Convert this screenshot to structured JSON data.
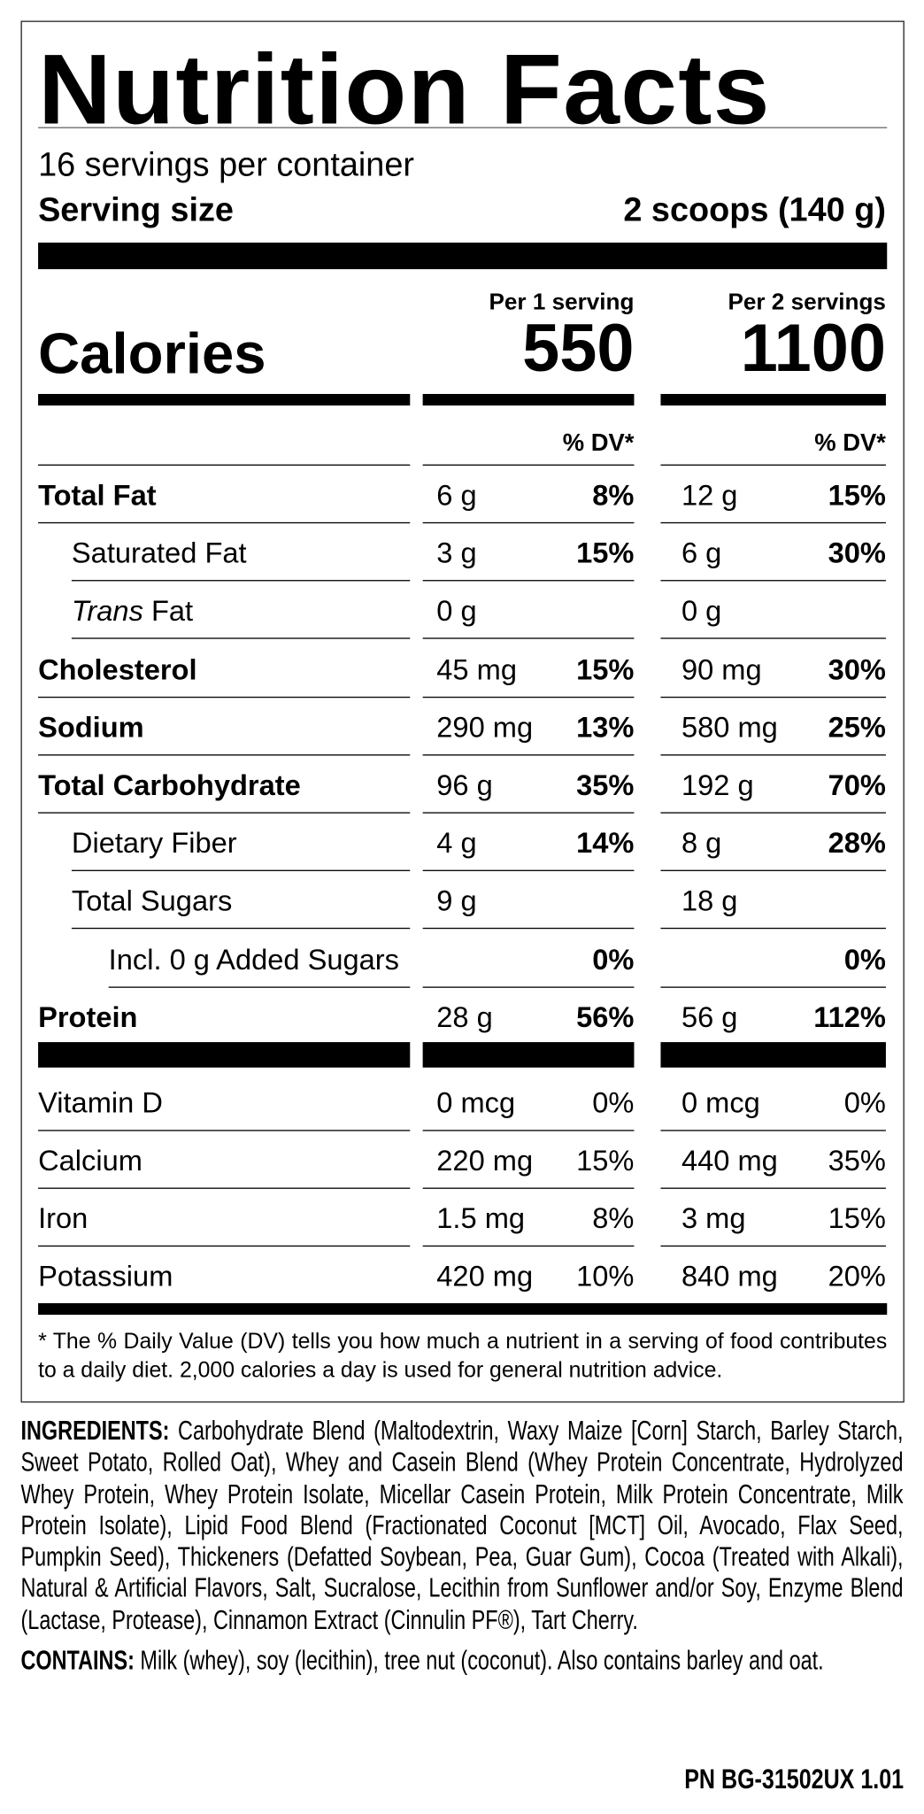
{
  "title": "Nutrition Facts",
  "servings_per_container": "16 servings per container",
  "serving_size_label": "Serving size",
  "serving_size_value": "2 scoops (140 g)",
  "columns": [
    {
      "header": "Per 1 serving",
      "calories": "550"
    },
    {
      "header": "Per 2 servings",
      "calories": "1100"
    }
  ],
  "calories_label": "Calories",
  "dv_header": "% DV*",
  "nutrients": [
    {
      "label": "Total Fat",
      "bold": true,
      "indent": 0,
      "v1": "6 g",
      "p1": "8%",
      "v2": "12 g",
      "p2": "15%"
    },
    {
      "label": "Saturated Fat",
      "bold": false,
      "indent": 1,
      "v1": "3 g",
      "p1": "15%",
      "v2": "6 g",
      "p2": "30%"
    },
    {
      "label_italic": "Trans",
      "label": " Fat",
      "bold": false,
      "indent": 1,
      "v1": "0 g",
      "p1": "",
      "v2": "0 g",
      "p2": ""
    },
    {
      "label": "Cholesterol",
      "bold": true,
      "indent": 0,
      "v1": "45 mg",
      "p1": "15%",
      "v2": "90 mg",
      "p2": "30%"
    },
    {
      "label": "Sodium",
      "bold": true,
      "indent": 0,
      "v1": "290 mg",
      "p1": "13%",
      "v2": "580 mg",
      "p2": "25%"
    },
    {
      "label": "Total Carbohydrate",
      "bold": true,
      "indent": 0,
      "v1": "96 g",
      "p1": "35%",
      "v2": "192 g",
      "p2": "70%"
    },
    {
      "label": "Dietary Fiber",
      "bold": false,
      "indent": 1,
      "v1": "4 g",
      "p1": "14%",
      "v2": "8 g",
      "p2": "28%"
    },
    {
      "label": "Total Sugars",
      "bold": false,
      "indent": 1,
      "v1": "9 g",
      "p1": "",
      "v2": "18 g",
      "p2": ""
    },
    {
      "label": "Incl. 0 g Added Sugars",
      "bold": false,
      "indent": 2,
      "v1": "",
      "p1": "0%",
      "v2": "",
      "p2": "0%"
    },
    {
      "label": "Protein",
      "bold": true,
      "indent": 0,
      "v1": "28 g",
      "p1": "56%",
      "v2": "56 g",
      "p2": "112%"
    }
  ],
  "vitamins": [
    {
      "label": "Vitamin D",
      "v1": "0 mcg",
      "p1": "0%",
      "v2": "0 mcg",
      "p2": "0%"
    },
    {
      "label": "Calcium",
      "v1": "220 mg",
      "p1": "15%",
      "v2": "440 mg",
      "p2": "35%"
    },
    {
      "label": "Iron",
      "v1": "1.5 mg",
      "p1": "8%",
      "v2": "3 mg",
      "p2": "15%"
    },
    {
      "label": "Potassium",
      "v1": "420 mg",
      "p1": "10%",
      "v2": "840 mg",
      "p2": "20%"
    }
  ],
  "footnote": "* The % Daily Value (DV) tells you how much a nutrient in a serving of food contributes to a daily diet. 2,000 calories a day is used for general nutrition advice.",
  "ingredients_label": "INGREDIENTS:",
  "ingredients": " Carbohydrate Blend (Maltodextrin, Waxy Maize [Corn] Starch, Barley Starch, Sweet Potato, Rolled Oat), Whey and Casein Blend (Whey Protein Concentrate, Hydrolyzed Whey Protein, Whey Protein Isolate, Micellar Casein Protein, Milk Protein Concentrate, Milk Protein Isolate), Lipid Food Blend (Fractionated Coconut [MCT] Oil, Avocado, Flax Seed, Pumpkin Seed), Thickeners (Defatted Soybean, Pea, Guar Gum), Cocoa (Treated with Alkali), Natural & Artificial Flavors, Salt, Sucralose, Lecithin from Sunflower and/or Soy, Enzyme Blend (Lactase, Protease), Cinnamon Extract (Cinnulin PF®), Tart Cherry.",
  "contains_label": "CONTAINS:",
  "contains": " Milk (whey), soy (lecithin), tree nut (coconut). Also contains barley and oat.",
  "part_number": "PN BG-31502UX 1.01"
}
